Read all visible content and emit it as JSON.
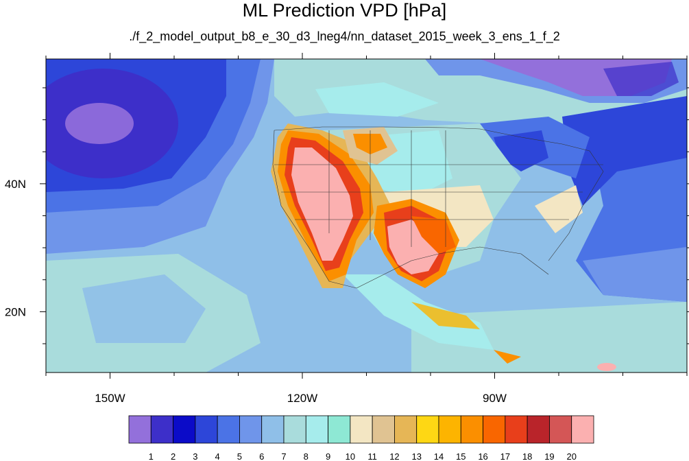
{
  "title": "ML Prediction VPD [hPa]",
  "subtitle": "./f_2_model_output_b8_e_30_d3_lneg4/nn_dataset_2015_week_3_ens_1_f_2",
  "map": {
    "lon_range": [
      -160,
      -60
    ],
    "lat_range": [
      10.5,
      59.5
    ],
    "lon_ticks": [
      {
        "value": -150,
        "label": "150W"
      },
      {
        "value": -120,
        "label": "120W"
      },
      {
        "value": -90,
        "label": "90W"
      }
    ],
    "lat_ticks": [
      {
        "value": 40,
        "label": "40N"
      },
      {
        "value": 20,
        "label": "20N"
      }
    ]
  },
  "colorbar": {
    "colors": [
      "#9370db",
      "#3d2fc9",
      "#0b0bc8",
      "#2d46d9",
      "#4b73e6",
      "#6f95ea",
      "#8fbfe8",
      "#a9dcdc",
      "#a6ecec",
      "#8ee8d4",
      "#f3e6c3",
      "#e0c392",
      "#e6b656",
      "#fed714",
      "#fdb400",
      "#fb8f00",
      "#f96600",
      "#e83f1b",
      "#b9242a",
      "#d45656",
      "#fbb0b0"
    ],
    "labels": [
      "1",
      "2",
      "3",
      "4",
      "5",
      "6",
      "7",
      "8",
      "9",
      "10",
      "11",
      "12",
      "13",
      "14",
      "15",
      "16",
      "17",
      "18",
      "19",
      "20"
    ]
  }
}
